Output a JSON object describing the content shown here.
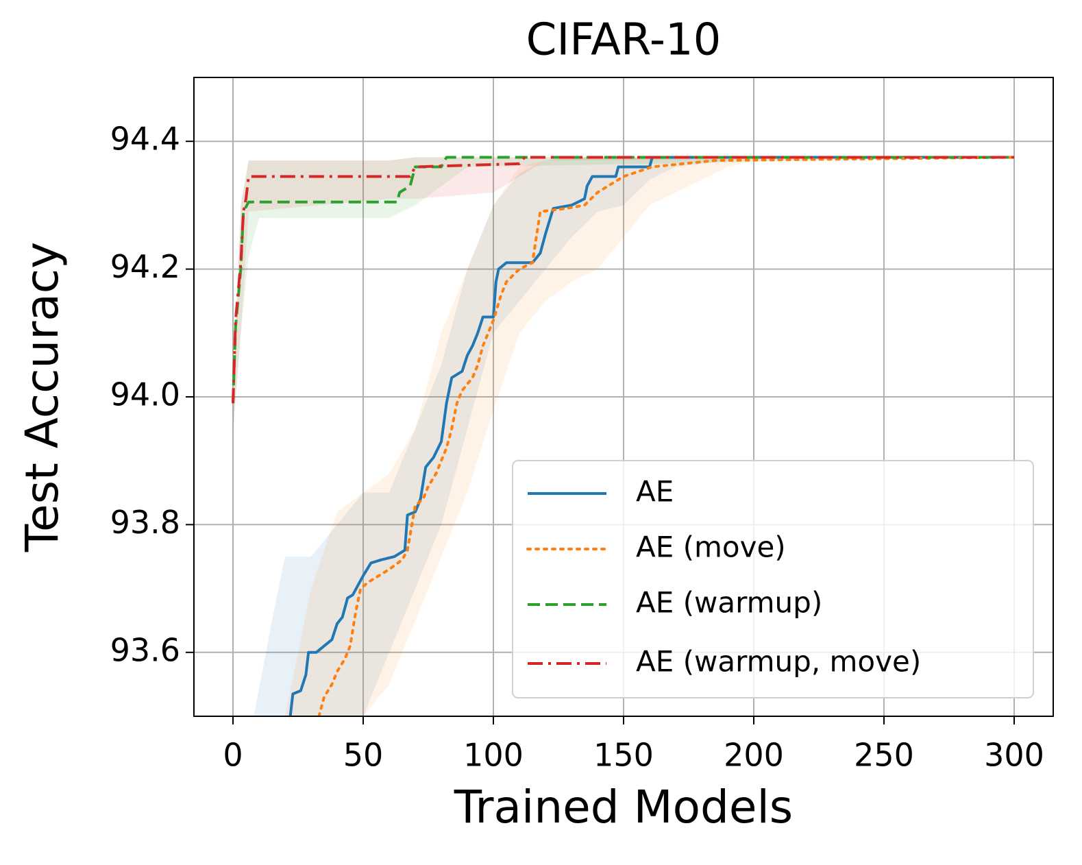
{
  "chart_data": {
    "type": "line",
    "title": "CIFAR-10",
    "xlabel": "Trained Models",
    "ylabel": "Test Accuracy",
    "xlim": [
      -15,
      315
    ],
    "xticks": [
      0,
      50,
      100,
      150,
      200,
      250,
      300
    ],
    "ylim": [
      93.5,
      94.5
    ],
    "yticks": [
      93.6,
      93.8,
      {
        "value": 94,
        "label": "94.0"
      },
      94.2,
      94.4
    ],
    "grid": true,
    "legend": "lower right",
    "series": [
      {
        "name": "AE",
        "color": "#1f77b4",
        "linestyle": "solid",
        "x": [
          22,
          23,
          26,
          28,
          29,
          32,
          35,
          38,
          40,
          42,
          44,
          46,
          48,
          50,
          53,
          57,
          62,
          66,
          67,
          70,
          72,
          74,
          77,
          80,
          82,
          84,
          88,
          90,
          92,
          94,
          96,
          100,
          101,
          102,
          105,
          115,
          118,
          120,
          123,
          130,
          135,
          136,
          138,
          147,
          148,
          160,
          161,
          300
        ],
        "values": [
          93.5,
          93.535,
          93.54,
          93.565,
          93.6,
          93.6,
          93.61,
          93.62,
          93.645,
          93.655,
          93.685,
          93.69,
          93.705,
          93.72,
          93.74,
          93.745,
          93.75,
          93.76,
          93.815,
          93.82,
          93.84,
          93.89,
          93.905,
          93.93,
          93.99,
          94.03,
          94.04,
          94.065,
          94.08,
          94.1,
          94.125,
          94.125,
          94.18,
          94.2,
          94.21,
          94.21,
          94.225,
          94.255,
          94.295,
          94.3,
          94.31,
          94.33,
          94.345,
          94.345,
          94.36,
          94.36,
          94.375,
          94.375
        ],
        "band": {
          "x": [
            8,
            15,
            20,
            30,
            40,
            50,
            60,
            70,
            80,
            90,
            100,
            110,
            120,
            130,
            140,
            150,
            160,
            170,
            200,
            300
          ],
          "upper": [
            93.5,
            93.65,
            93.75,
            93.75,
            93.8,
            93.85,
            93.85,
            93.95,
            94.05,
            94.2,
            94.3,
            94.35,
            94.37,
            94.375,
            94.375,
            94.375,
            94.375,
            94.375,
            94.375,
            94.375
          ],
          "lower": [
            93.5,
            93.5,
            93.5,
            93.5,
            93.5,
            93.5,
            93.6,
            93.7,
            93.8,
            93.95,
            94.1,
            94.15,
            94.2,
            94.25,
            94.29,
            94.3,
            94.34,
            94.36,
            94.375,
            94.375
          ]
        }
      },
      {
        "name": "AE (move)",
        "color": "#ff7f0e",
        "linestyle": "dotted",
        "x": [
          33,
          35,
          38,
          40,
          43,
          45,
          47,
          49,
          52,
          56,
          60,
          65,
          67,
          70,
          73,
          75,
          78,
          82,
          84,
          86,
          88,
          92,
          94,
          96,
          98,
          100,
          103,
          105,
          110,
          115,
          118,
          128,
          135,
          140,
          150,
          161,
          185,
          300
        ],
        "values": [
          93.5,
          93.53,
          93.55,
          93.57,
          93.59,
          93.61,
          93.66,
          93.7,
          93.71,
          93.72,
          93.73,
          93.745,
          93.76,
          93.83,
          93.84,
          93.86,
          93.88,
          93.92,
          93.95,
          93.99,
          94.01,
          94.03,
          94.05,
          94.08,
          94.1,
          94.12,
          94.16,
          94.18,
          94.2,
          94.21,
          94.29,
          94.295,
          94.3,
          94.32,
          94.345,
          94.36,
          94.37,
          94.375
        ],
        "band": {
          "x": [
            20,
            30,
            40,
            50,
            60,
            70,
            80,
            90,
            100,
            110,
            120,
            130,
            140,
            150,
            160,
            170,
            180,
            190,
            200,
            300
          ],
          "upper": [
            93.5,
            93.7,
            93.82,
            93.85,
            93.88,
            93.95,
            94.1,
            94.2,
            94.3,
            94.36,
            94.37,
            94.375,
            94.375,
            94.375,
            94.375,
            94.375,
            94.375,
            94.375,
            94.375,
            94.375
          ],
          "lower": [
            93.5,
            93.5,
            93.5,
            93.5,
            93.55,
            93.65,
            93.75,
            93.85,
            93.98,
            94.1,
            94.15,
            94.18,
            94.2,
            94.25,
            94.3,
            94.32,
            94.34,
            94.36,
            94.37,
            94.375
          ]
        }
      },
      {
        "name": "AE (warmup)",
        "color": "#2ca02c",
        "linestyle": "dashed",
        "x": [
          0,
          1,
          3,
          4,
          6,
          63,
          64,
          68,
          70,
          80,
          82,
          300
        ],
        "values": [
          93.99,
          94.11,
          94.2,
          94.29,
          94.305,
          94.305,
          94.32,
          94.33,
          94.36,
          94.36,
          94.375,
          94.375
        ],
        "band": {
          "x": [
            0,
            3,
            6,
            10,
            60,
            70,
            80,
            90,
            300
          ],
          "upper": [
            93.99,
            94.3,
            94.37,
            94.37,
            94.37,
            94.375,
            94.375,
            94.375,
            94.375
          ],
          "lower": [
            93.95,
            94.1,
            94.22,
            94.28,
            94.28,
            94.3,
            94.33,
            94.36,
            94.375
          ]
        }
      },
      {
        "name": "AE (warmup, move)",
        "color": "#d62728",
        "linestyle": "dashdot",
        "x": [
          0,
          1,
          3,
          4,
          5,
          6,
          68,
          70,
          110,
          112,
          300
        ],
        "values": [
          93.99,
          94.12,
          94.21,
          94.29,
          94.31,
          94.345,
          94.345,
          94.36,
          94.365,
          94.375,
          94.375
        ],
        "band": {
          "x": [
            0,
            3,
            6,
            60,
            70,
            100,
            120,
            300
          ],
          "upper": [
            94.0,
            94.3,
            94.37,
            94.37,
            94.375,
            94.375,
            94.375,
            94.375
          ],
          "lower": [
            93.94,
            94.1,
            94.29,
            94.31,
            94.31,
            94.32,
            94.37,
            94.375
          ]
        }
      }
    ]
  }
}
